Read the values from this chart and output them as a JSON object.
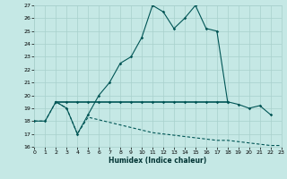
{
  "xlabel": "Humidex (Indice chaleur)",
  "bg_color": "#c5e8e5",
  "grid_color": "#a8d0cc",
  "line_color": "#005555",
  "x_main": [
    0,
    1,
    2,
    3,
    4,
    5,
    6,
    7,
    8,
    9,
    10,
    11,
    12,
    13,
    14,
    15,
    16,
    17,
    18,
    19,
    20,
    21,
    22,
    23
  ],
  "y_main": [
    18.0,
    18.0,
    19.5,
    19.0,
    17.0,
    18.5,
    20.0,
    21.0,
    22.5,
    23.0,
    24.5,
    27.0,
    26.5,
    25.2,
    26.0,
    27.0,
    25.2,
    25.0,
    19.5,
    19.3,
    19.0,
    19.2,
    18.5,
    null
  ],
  "x_flat": [
    2,
    3,
    4,
    5,
    6,
    7,
    8,
    9,
    10,
    11,
    12,
    13,
    14,
    15,
    16,
    17,
    18
  ],
  "y_flat": [
    19.5,
    19.5,
    19.5,
    19.5,
    19.5,
    19.5,
    19.5,
    19.5,
    19.5,
    19.5,
    19.5,
    19.5,
    19.5,
    19.5,
    19.5,
    19.5,
    19.5
  ],
  "x_dec": [
    0,
    1,
    2,
    3,
    4,
    5,
    6,
    7,
    8,
    9,
    10,
    11,
    12,
    13,
    14,
    15,
    16,
    17,
    18,
    19,
    20,
    21,
    22,
    23
  ],
  "y_dec": [
    18.0,
    18.0,
    19.5,
    19.0,
    17.0,
    18.3,
    18.1,
    17.9,
    17.7,
    17.5,
    17.3,
    17.1,
    17.0,
    16.9,
    16.8,
    16.7,
    16.6,
    16.5,
    16.5,
    16.4,
    16.3,
    16.2,
    16.1,
    16.1
  ],
  "ylim_min": 16,
  "ylim_max": 27,
  "xlim_min": 0,
  "xlim_max": 23
}
